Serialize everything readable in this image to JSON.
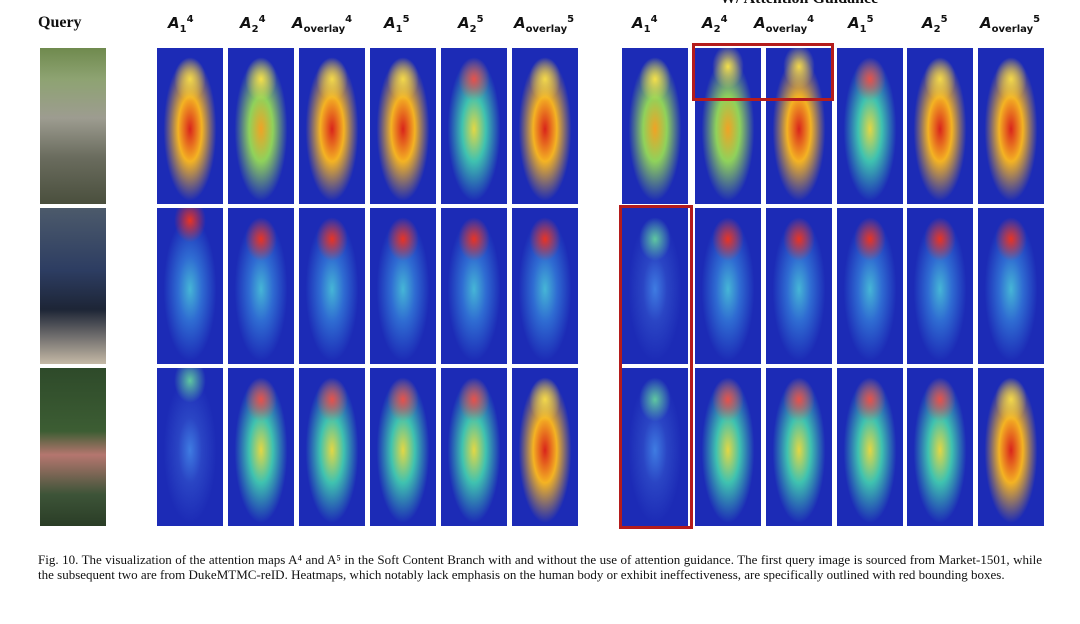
{
  "figure": {
    "query_header": "Query",
    "group_title_right": "W/ Attention Guidance",
    "column_headers": [
      {
        "base": "A",
        "sub": "1",
        "sup": "4"
      },
      {
        "base": "A",
        "sub": "2",
        "sup": "4"
      },
      {
        "base": "A",
        "sub": "overlay",
        "sup": "4"
      },
      {
        "base": "A",
        "sub": "1",
        "sup": "5"
      },
      {
        "base": "A",
        "sub": "2",
        "sup": "5"
      },
      {
        "base": "A",
        "sub": "overlay",
        "sup": "5"
      }
    ],
    "caption": "Fig. 10.  The visualization of the attention maps A⁴ and A⁵ in the Soft Content Branch with and without the use of attention guidance. The first query image is sourced from Market-1501, while the subsequent two are from DukeMTMC-reID. Heatmaps, which notably lack emphasis on the human body or exhibit ineffectiveness, are specifically outlined with red bounding boxes.",
    "highlight_color": "#b41c1c"
  }
}
